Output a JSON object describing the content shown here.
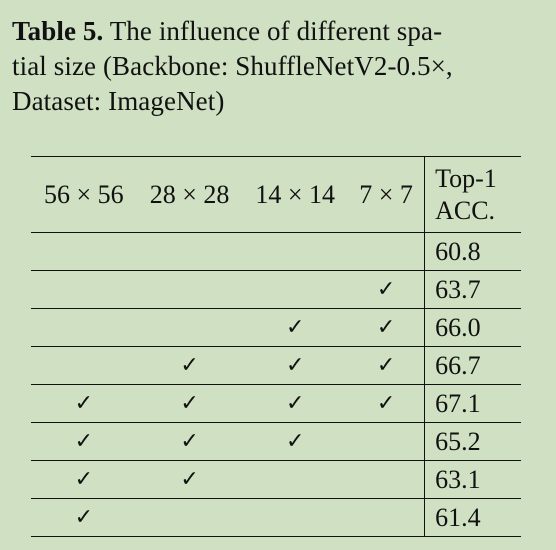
{
  "caption": {
    "label": "Table 5.",
    "line1_rest": " The influence of different spa-",
    "line2": "tial size (Backbone: ShuffleNetV2-0.5×,",
    "line3": "Dataset: ImageNet)"
  },
  "table": {
    "headers": {
      "s56": "56 × 56",
      "s28": "28 × 28",
      "s14": "14 × 14",
      "s7": "7 × 7",
      "acc_line1": "Top-1",
      "acc_line2": "ACC."
    },
    "check_symbol": "✓",
    "rows": [
      {
        "s56": "",
        "s28": "",
        "s14": "",
        "s7": "",
        "acc": "60.8"
      },
      {
        "s56": "",
        "s28": "",
        "s14": "",
        "s7": "✓",
        "acc": "63.7"
      },
      {
        "s56": "",
        "s28": "",
        "s14": "✓",
        "s7": "✓",
        "acc": "66.0"
      },
      {
        "s56": "",
        "s28": "✓",
        "s14": "✓",
        "s7": "✓",
        "acc": "66.7"
      },
      {
        "s56": "✓",
        "s28": "✓",
        "s14": "✓",
        "s7": "✓",
        "acc": "67.1"
      },
      {
        "s56": "✓",
        "s28": "✓",
        "s14": "✓",
        "s7": "",
        "acc": "65.2"
      },
      {
        "s56": "✓",
        "s28": "✓",
        "s14": "",
        "s7": "",
        "acc": "63.1"
      },
      {
        "s56": "✓",
        "s28": "",
        "s14": "",
        "s7": "",
        "acc": "61.4"
      }
    ]
  }
}
